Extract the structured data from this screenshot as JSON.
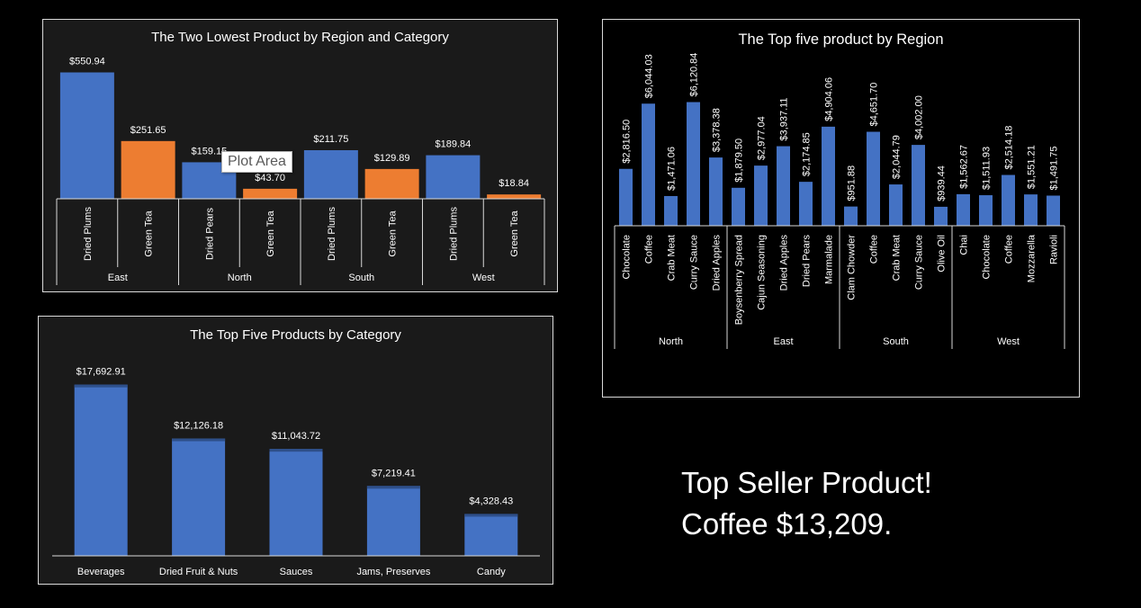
{
  "chart_data": [
    {
      "type": "bar",
      "title": "The Two Lowest Product by Region and Category",
      "groups": [
        {
          "name": "East",
          "items": [
            {
              "product": "Dried Plums",
              "value": 550.94,
              "label": "$550.94",
              "color": "#4472c4"
            },
            {
              "product": "Green Tea",
              "value": 251.65,
              "label": "$251.65",
              "color": "#ed7d31"
            }
          ]
        },
        {
          "name": "North",
          "items": [
            {
              "product": "Dried Pears",
              "value": 159.15,
              "label": "$159.15",
              "color": "#4472c4"
            },
            {
              "product": "Green Tea",
              "value": 43.7,
              "label": "$43.70",
              "color": "#ed7d31"
            }
          ]
        },
        {
          "name": "South",
          "items": [
            {
              "product": "Dried Plums",
              "value": 211.75,
              "label": "$211.75",
              "color": "#4472c4"
            },
            {
              "product": "Green Tea",
              "value": 129.89,
              "label": "$129.89",
              "color": "#ed7d31"
            }
          ]
        },
        {
          "name": "West",
          "items": [
            {
              "product": "Dried Plums",
              "value": 189.84,
              "label": "$189.84",
              "color": "#4472c4"
            },
            {
              "product": "Green Tea",
              "value": 18.84,
              "label": "$18.84",
              "color": "#ed7d31"
            }
          ]
        }
      ]
    },
    {
      "type": "bar",
      "title": "The Top five product by Region",
      "groups": [
        {
          "name": "North",
          "items": [
            {
              "product": "Chocolate",
              "value": 2816.5,
              "label": "$2,816.50"
            },
            {
              "product": "Coffee",
              "value": 6044.03,
              "label": "$6,044.03"
            },
            {
              "product": "Crab Meat",
              "value": 1471.06,
              "label": "$1,471.06"
            },
            {
              "product": "Curry Sauce",
              "value": 6120.84,
              "label": "$6,120.84"
            },
            {
              "product": "Dried Apples",
              "value": 3378.38,
              "label": "$3,378.38"
            }
          ]
        },
        {
          "name": "East",
          "items": [
            {
              "product": "Boysenberry Spread",
              "value": 1879.5,
              "label": "$1,879.50"
            },
            {
              "product": "Cajun Seasoning",
              "value": 2977.04,
              "label": "$2,977.04"
            },
            {
              "product": "Dried Apples",
              "value": 3937.11,
              "label": "$3,937.11"
            },
            {
              "product": "Dried Pears",
              "value": 2174.85,
              "label": "$2,174.85"
            },
            {
              "product": "Marmalade",
              "value": 4904.06,
              "label": "$4,904.06"
            }
          ]
        },
        {
          "name": "South",
          "items": [
            {
              "product": "Clam Chowder",
              "value": 951.88,
              "label": "$951.88"
            },
            {
              "product": "Coffee",
              "value": 4651.7,
              "label": "$4,651.70"
            },
            {
              "product": "Crab Meat",
              "value": 2044.79,
              "label": "$2,044.79"
            },
            {
              "product": "Curry Sauce",
              "value": 4002.0,
              "label": "$4,002.00"
            },
            {
              "product": "Olive Oil",
              "value": 939.44,
              "label": "$939.44"
            }
          ]
        },
        {
          "name": "West",
          "items": [
            {
              "product": "Chai",
              "value": 1562.67,
              "label": "$1,562.67"
            },
            {
              "product": "Chocolate",
              "value": 1511.93,
              "label": "$1,511.93"
            },
            {
              "product": "Coffee",
              "value": 2514.18,
              "label": "$2,514.18"
            },
            {
              "product": "Mozzarella",
              "value": 1551.21,
              "label": "$1,551.21"
            },
            {
              "product": "Ravioli",
              "value": 1491.75,
              "label": "$1,491.75"
            }
          ]
        }
      ]
    },
    {
      "type": "bar",
      "title": "The Top Five Products by Category",
      "categories": [
        "Beverages",
        "Dried Fruit & Nuts",
        "Sauces",
        "Jams, Preserves",
        "Candy"
      ],
      "values": [
        17692.91,
        12126.18,
        11043.72,
        7219.41,
        4328.43
      ],
      "labels": [
        "$17,692.91",
        "$12,126.18",
        "$11,043.72",
        "$7,219.41",
        "$4,328.43"
      ]
    }
  ],
  "tooltip": "Plot Area",
  "top_seller": {
    "line1": "Top Seller Product!",
    "line2": "Coffee $13,209."
  },
  "colors": {
    "blue": "#4472c4",
    "orange": "#ed7d31",
    "axis": "#d9d9d9"
  }
}
